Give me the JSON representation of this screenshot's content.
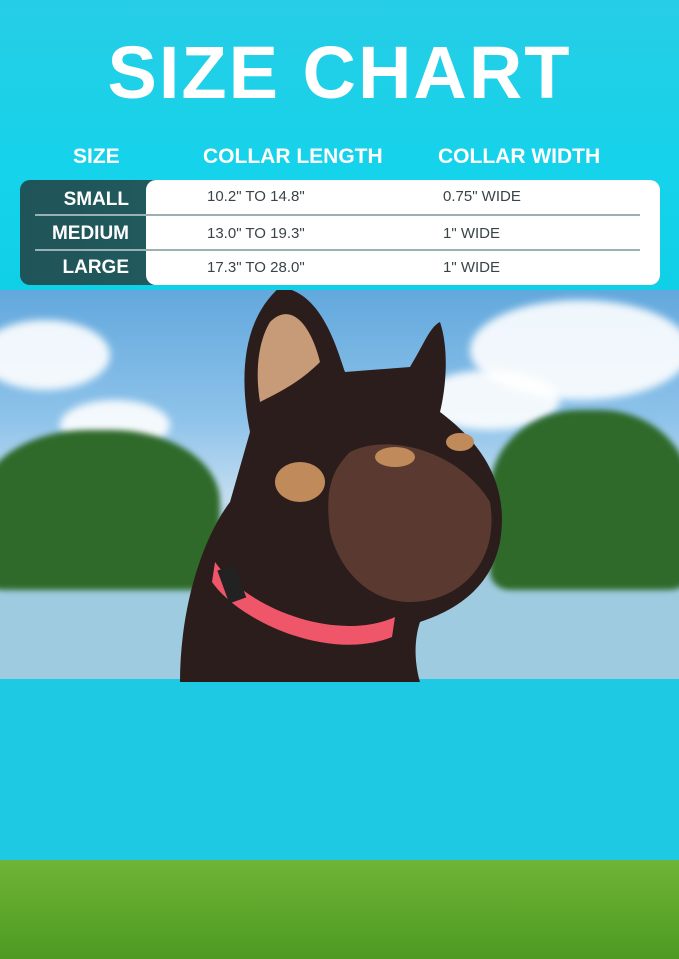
{
  "title": "SIZE CHART",
  "headers": {
    "size": "SIZE",
    "length": "COLLAR LENGTH",
    "width": "COLLAR WIDTH"
  },
  "rows": [
    {
      "size": "SMALL",
      "length": "10.2\" TO 14.8\"",
      "width": "0.75\" WIDE"
    },
    {
      "size": "MEDIUM",
      "length": "13.0\" TO 19.3\"",
      "width": "1\" WIDE"
    },
    {
      "size": "LARGE",
      "length": "17.3\" TO 28.0\"",
      "width": "1\" WIDE"
    }
  ],
  "colors": {
    "background": "#14d3ea",
    "size_column": "#1f5458",
    "collar": "#f0566a"
  }
}
